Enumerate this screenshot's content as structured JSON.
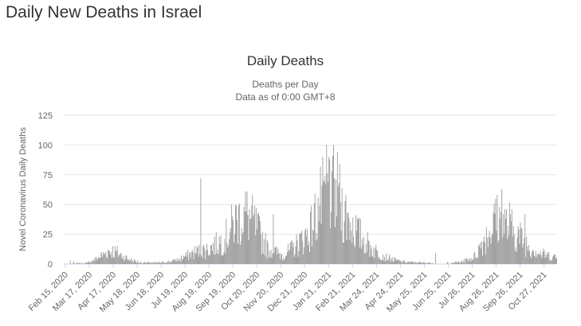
{
  "page": {
    "heading": "Daily New Deaths in Israel"
  },
  "colors": {
    "bar": "#999999",
    "grid": "#e6e6e6",
    "text": "#333333",
    "axis_text": "#666666"
  },
  "chart_data": {
    "type": "bar",
    "title": "Daily Deaths",
    "subtitle_lines": [
      "Deaths per Day",
      "Data as of 0:00 GMT+8"
    ],
    "ylabel": "Novel Coronavirus Daily Deaths",
    "xlabel": "",
    "ylim": [
      0,
      125
    ],
    "yticks": [
      0,
      25,
      50,
      75,
      100,
      125
    ],
    "x_start": "2020-02-15",
    "x_end": "2021-11-14",
    "xtick_labels": [
      "Feb 15, 2020",
      "Mar 17, 2020",
      "Apr 17, 2020",
      "May 18, 2020",
      "Jun 18, 2020",
      "Jul 19, 2020",
      "Aug 19, 2020",
      "Sep 19, 2020",
      "Oct 20, 2020",
      "Nov 20, 2020",
      "Dec 21, 2020",
      "Jan 21, 2021",
      "Feb 21, 2021",
      "Mar 24, 2021",
      "Apr 24, 2021",
      "May 25, 2021",
      "Jun 25, 2021",
      "Jul 26, 2021",
      "Aug 26, 2021",
      "Sep 26, 2021",
      "Oct 27, 2021"
    ],
    "grid": true,
    "legend": "none",
    "weekly_avg_series": [
      {
        "date": "2020-02-15",
        "value": 0
      },
      {
        "date": "2020-03-17",
        "value": 1
      },
      {
        "date": "2020-04-02",
        "value": 6
      },
      {
        "date": "2020-04-14",
        "value": 11
      },
      {
        "date": "2020-04-24",
        "value": 9
      },
      {
        "date": "2020-05-08",
        "value": 4
      },
      {
        "date": "2020-05-25",
        "value": 1
      },
      {
        "date": "2020-06-20",
        "value": 1
      },
      {
        "date": "2020-07-10",
        "value": 3
      },
      {
        "date": "2020-08-01",
        "value": 9
      },
      {
        "date": "2020-08-20",
        "value": 12
      },
      {
        "date": "2020-09-10",
        "value": 20
      },
      {
        "date": "2020-09-25",
        "value": 35
      },
      {
        "date": "2020-10-08",
        "value": 40
      },
      {
        "date": "2020-10-20",
        "value": 30
      },
      {
        "date": "2020-11-05",
        "value": 12
      },
      {
        "date": "2020-11-25",
        "value": 7
      },
      {
        "date": "2020-12-10",
        "value": 14
      },
      {
        "date": "2020-12-28",
        "value": 25
      },
      {
        "date": "2021-01-10",
        "value": 45
      },
      {
        "date": "2021-01-22",
        "value": 62
      },
      {
        "date": "2021-02-02",
        "value": 55
      },
      {
        "date": "2021-02-15",
        "value": 38
      },
      {
        "date": "2021-03-01",
        "value": 25
      },
      {
        "date": "2021-03-20",
        "value": 12
      },
      {
        "date": "2021-04-05",
        "value": 6
      },
      {
        "date": "2021-04-25",
        "value": 2
      },
      {
        "date": "2021-05-25",
        "value": 1
      },
      {
        "date": "2021-06-25",
        "value": 0
      },
      {
        "date": "2021-07-15",
        "value": 2
      },
      {
        "date": "2021-07-31",
        "value": 6
      },
      {
        "date": "2021-08-12",
        "value": 20
      },
      {
        "date": "2021-08-28",
        "value": 35
      },
      {
        "date": "2021-09-08",
        "value": 32
      },
      {
        "date": "2021-09-22",
        "value": 25
      },
      {
        "date": "2021-10-08",
        "value": 15
      },
      {
        "date": "2021-10-25",
        "value": 8
      },
      {
        "date": "2021-11-14",
        "value": 5
      }
    ],
    "spikes": [
      {
        "date": "2020-08-10",
        "value": 72
      },
      {
        "date": "2020-11-12",
        "value": 42
      },
      {
        "date": "2021-01-20",
        "value": 100
      },
      {
        "date": "2021-01-24",
        "value": 88
      },
      {
        "date": "2021-01-27",
        "value": 78
      },
      {
        "date": "2021-01-16",
        "value": 70
      },
      {
        "date": "2021-01-30",
        "value": 72
      },
      {
        "date": "2021-02-05",
        "value": 68
      },
      {
        "date": "2021-06-10",
        "value": 9
      },
      {
        "date": "2021-09-04",
        "value": 63
      },
      {
        "date": "2021-08-27",
        "value": 55
      },
      {
        "date": "2021-09-14",
        "value": 52
      },
      {
        "date": "2021-10-04",
        "value": 42
      }
    ]
  }
}
